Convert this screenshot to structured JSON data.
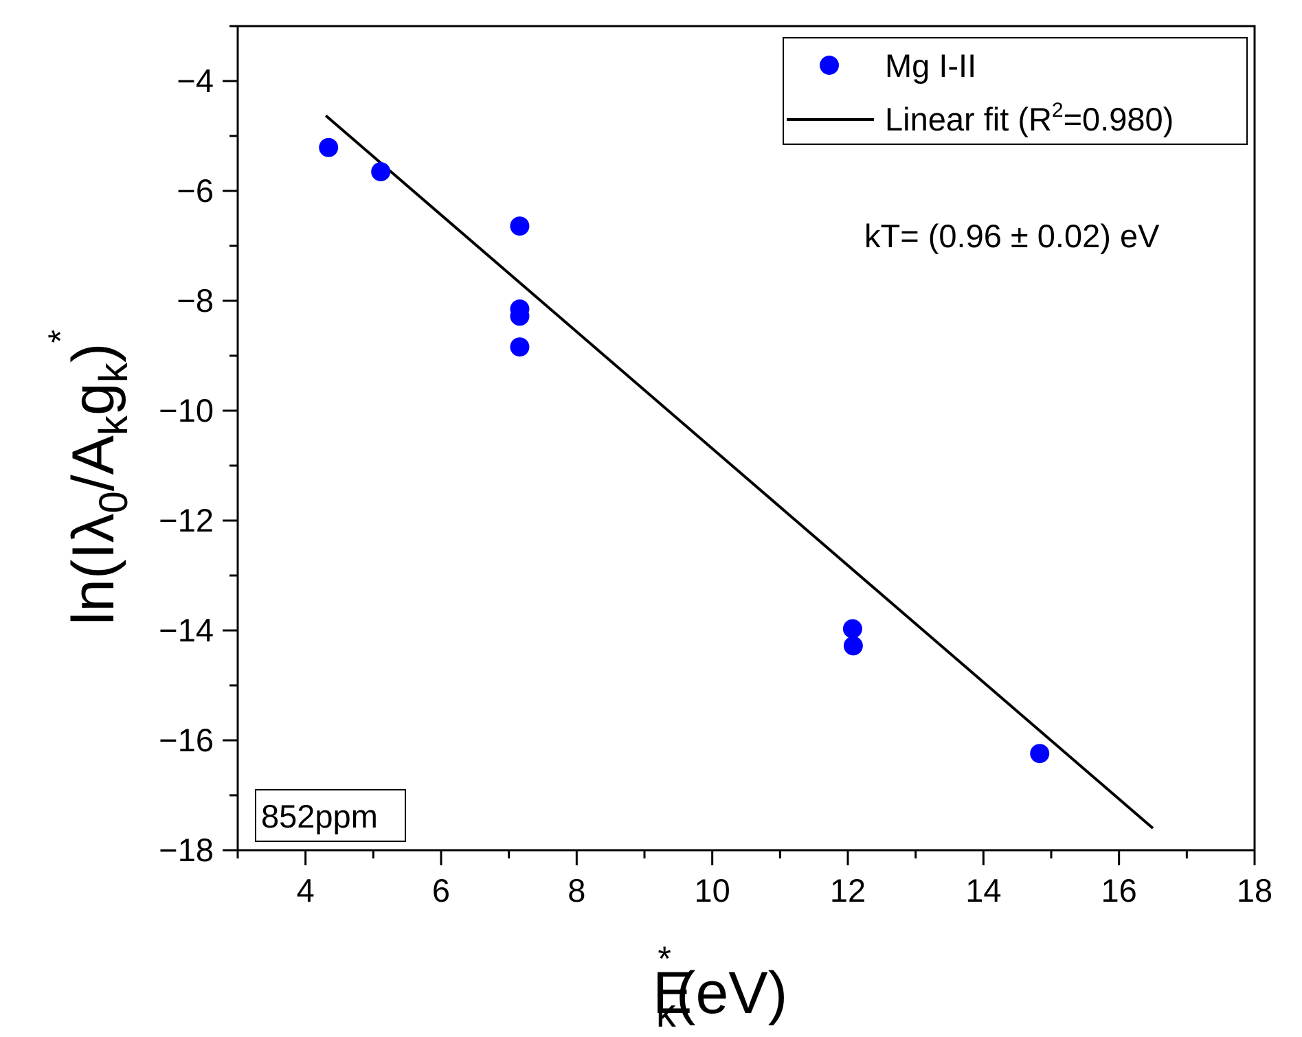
{
  "chart_data": {
    "type": "scatter",
    "x_axis": {
      "range": [
        3,
        18
      ],
      "ticks": [
        4,
        6,
        8,
        10,
        12,
        14,
        16,
        18
      ],
      "minor_step": 1,
      "title": {
        "main": "E",
        "sub": "k",
        "sup": "*",
        "suffix": "(eV)"
      }
    },
    "y_axis": {
      "range": [
        -18,
        -3
      ],
      "ticks": [
        -18,
        -16,
        -14,
        -12,
        -10,
        -8,
        -6,
        -4
      ],
      "minor_step": 1,
      "title": {
        "prefix": "ln(Iλ",
        "sub1": "0",
        "mid1": "/A",
        "sub2": "k",
        "mid2": "g",
        "sub3": "k",
        "suffix": ")",
        "sup": "*"
      }
    },
    "series": [
      {
        "name": "Mg I-II",
        "kind": "scatter",
        "color": "#0000ff",
        "x": [
          4.34,
          5.11,
          7.16,
          7.16,
          7.16,
          7.16,
          12.07,
          12.08,
          14.83
        ],
        "y": [
          -5.21,
          -5.65,
          -6.64,
          -8.15,
          -8.28,
          -8.84,
          -13.97,
          -14.28,
          -16.24
        ]
      },
      {
        "name": "Linear fit (R",
        "name_sup": "2",
        "name_suffix": "=0.980)",
        "kind": "line",
        "color": "#000000",
        "x": [
          4.3,
          16.5
        ],
        "y": [
          -4.63,
          -17.6
        ]
      }
    ],
    "annotations": {
      "kt": "kT= (0.96 ± 0.02) eV",
      "sample": "852ppm"
    },
    "legend_position": "top-right",
    "grid": false
  }
}
